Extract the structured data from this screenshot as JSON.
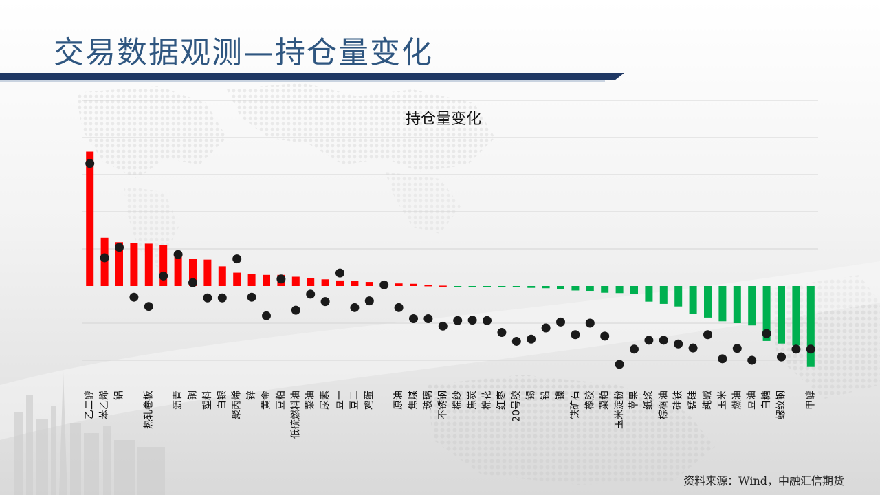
{
  "header": {
    "title": "交易数据观测—持仓量变化"
  },
  "footer": {
    "source": "资料来源：Wind，中融汇信期货"
  },
  "colors": {
    "positive": "#ff0000",
    "negative": "#00b050",
    "dot": "#1a1a1a",
    "title_bar": "#1f3864",
    "title_text": "#2f5680"
  },
  "chart_data": {
    "type": "bar",
    "title": "持仓量变化",
    "xlabel": "",
    "ylabel": "",
    "grid": true,
    "legend": "none",
    "categories": [
      "乙二醇",
      "苯乙烯",
      "铝",
      "",
      "热轧卷板",
      "",
      "沥青",
      "铜",
      "塑料",
      "白银",
      "聚丙烯",
      "锌",
      "黄金",
      "豆粕",
      "低硫燃料油",
      "菜油",
      "尿素",
      "豆一",
      "豆二",
      "鸡蛋",
      "",
      "原油",
      "焦煤",
      "玻璃",
      "不锈钢",
      "棉纱",
      "焦炭",
      "棉花",
      "红枣",
      "20号胶",
      "锡",
      "铅",
      "镍",
      "铁矿石",
      "橡胶",
      "菜粕",
      "玉米淀粉",
      "苹果",
      "纸浆",
      "棕榈油",
      "硅铁",
      "锰硅",
      "纯碱",
      "玉米",
      "燃油",
      "豆油",
      "白糖",
      "螺纹钢",
      "",
      "甲醇"
    ],
    "ylim": [
      -0.32,
      0.52
    ],
    "gridlines": [
      -0.2,
      -0.1,
      0,
      0.1,
      0.2,
      0.3,
      0.4,
      0.5
    ],
    "series": [
      {
        "kind": "bar",
        "values": [
          0.362,
          0.13,
          0.118,
          0.115,
          0.114,
          0.11,
          0.09,
          0.074,
          0.071,
          0.053,
          0.036,
          0.032,
          0.03,
          0.03,
          0.025,
          0.022,
          0.018,
          0.015,
          0.013,
          0.011,
          0.008,
          0.007,
          0.006,
          0.002,
          0.001,
          -0.001,
          -0.002,
          -0.002,
          -0.002,
          -0.003,
          -0.005,
          -0.006,
          -0.008,
          -0.012,
          -0.013,
          -0.018,
          -0.019,
          -0.022,
          -0.042,
          -0.048,
          -0.055,
          -0.075,
          -0.085,
          -0.095,
          -0.1,
          -0.106,
          -0.148,
          -0.155,
          -0.16,
          -0.218
        ]
      },
      {
        "kind": "dot",
        "values": [
          0.33,
          0.076,
          0.104,
          -0.03,
          -0.055,
          0.027,
          0.085,
          0.009,
          -0.032,
          -0.032,
          0.073,
          -0.03,
          -0.08,
          0.019,
          -0.065,
          -0.022,
          -0.042,
          0.035,
          -0.058,
          -0.04,
          0.003,
          -0.058,
          -0.088,
          -0.088,
          -0.108,
          -0.093,
          -0.092,
          -0.093,
          -0.125,
          -0.149,
          -0.143,
          -0.113,
          -0.097,
          -0.131,
          -0.1,
          -0.135,
          -0.211,
          -0.17,
          -0.146,
          -0.146,
          -0.156,
          -0.167,
          -0.131,
          -0.196,
          -0.168,
          -0.2,
          -0.128,
          -0.191,
          -0.17,
          -0.17
        ]
      }
    ]
  }
}
